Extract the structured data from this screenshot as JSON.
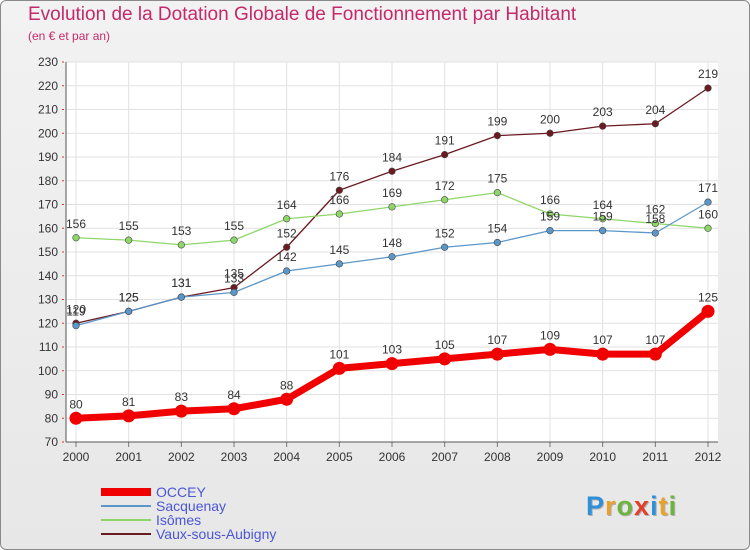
{
  "title": "Evolution de la Dotation Globale de Fonctionnement par Habitant",
  "subtitle": "(en € et par an)",
  "logo": {
    "text": "Proxiti",
    "letters": [
      {
        "ch": "P",
        "color": "#2f8fd8"
      },
      {
        "ch": "r",
        "color": "#e8a12a"
      },
      {
        "ch": "o",
        "color": "#6cb33f"
      },
      {
        "ch": "x",
        "color": "#e23f2a"
      },
      {
        "ch": "i",
        "color": "#2f8fd8"
      },
      {
        "ch": "t",
        "color": "#e8a12a"
      },
      {
        "ch": "i",
        "color": "#6cb33f"
      }
    ]
  },
  "chart_data": {
    "type": "line",
    "title": "Evolution de la Dotation Globale de Fonctionnement par Habitant",
    "subtitle": "(en € et par an)",
    "xlabel": "",
    "ylabel": "",
    "x": [
      "2000",
      "2001",
      "2002",
      "2003",
      "2004",
      "2005",
      "2006",
      "2007",
      "2008",
      "2009",
      "2010",
      "2011",
      "2012"
    ],
    "ylim": [
      70,
      230
    ],
    "yticks": [
      70,
      80,
      90,
      100,
      110,
      120,
      130,
      140,
      150,
      160,
      170,
      180,
      190,
      200,
      210,
      220,
      230
    ],
    "grid": true,
    "legend_position": "bottom-left",
    "series": [
      {
        "name": "Vaux-sous-Aubigny",
        "color": "#6b1a22",
        "thick": false,
        "values": [
          120,
          125,
          131,
          135,
          152,
          176,
          184,
          191,
          199,
          200,
          203,
          204,
          219
        ]
      },
      {
        "name": "Isômes",
        "color": "#8fd66a",
        "thick": false,
        "values": [
          156,
          155,
          153,
          155,
          164,
          166,
          169,
          172,
          175,
          166,
          164,
          162,
          160
        ]
      },
      {
        "name": "Sacquenay",
        "color": "#5b97c9",
        "thick": false,
        "values": [
          119,
          125,
          131,
          133,
          142,
          145,
          148,
          152,
          154,
          159,
          159,
          158,
          171
        ]
      },
      {
        "name": "OCCEY",
        "color": "#f00000",
        "thick": true,
        "values": [
          80,
          81,
          83,
          84,
          88,
          101,
          103,
          105,
          107,
          109,
          107,
          107,
          125
        ]
      }
    ],
    "legend_order": [
      "OCCEY",
      "Sacquenay",
      "Isômes",
      "Vaux-sous-Aubigny"
    ]
  }
}
